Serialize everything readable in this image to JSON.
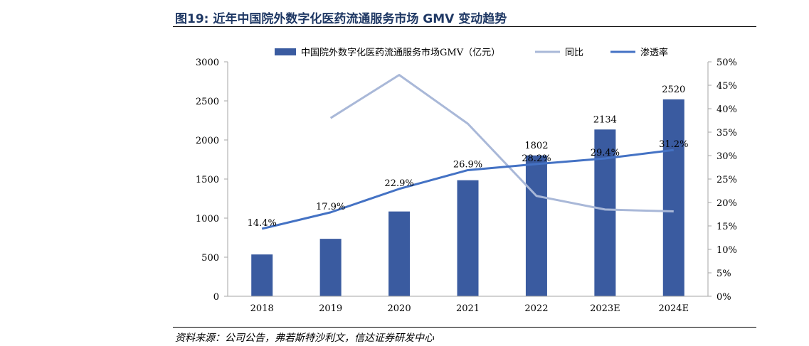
{
  "header": {
    "title": "图19: 近年中国院外数字化医药流通服务市场 GMV 变动趋势",
    "source": "资料来源：公司公告，弗若斯特沙利文，信达证券研发中心"
  },
  "chart_data": {
    "type": "bar",
    "categories": [
      "2018",
      "2019",
      "2020",
      "2021",
      "2022",
      "2023E",
      "2024E"
    ],
    "series": [
      {
        "name": "中国院外数字化医药流通服务市场GMV（亿元）",
        "type": "bar",
        "axis": "left",
        "color": "#3a5ba0",
        "values": [
          535,
          735,
          1085,
          1485,
          1802,
          2134,
          2520
        ],
        "labels": [
          "",
          "",
          "",
          "",
          "1802",
          "2134",
          "2520"
        ]
      },
      {
        "name": "同比",
        "type": "line",
        "axis": "right",
        "color": "#a9b8d8",
        "values": [
          null,
          0.38,
          0.472,
          0.368,
          0.214,
          0.185,
          0.181
        ]
      },
      {
        "name": "渗透率",
        "type": "line",
        "axis": "right",
        "color": "#4472c4",
        "values": [
          0.144,
          0.179,
          0.229,
          0.269,
          0.282,
          0.294,
          0.312
        ],
        "labels": [
          "14.4%",
          "17.9%",
          "22.9%",
          "26.9%",
          "28.2%",
          "29.4%",
          "31.2%"
        ]
      }
    ],
    "y_left": {
      "min": 0,
      "max": 3000,
      "step": 500,
      "ticks": [
        "0",
        "500",
        "1000",
        "1500",
        "2000",
        "2500",
        "3000"
      ]
    },
    "y_right": {
      "min": 0,
      "max": 0.5,
      "step": 0.05,
      "ticks": [
        "0%",
        "5%",
        "10%",
        "15%",
        "20%",
        "25%",
        "30%",
        "35%",
        "40%",
        "45%",
        "50%"
      ]
    },
    "grid": false,
    "legend": "top"
  }
}
